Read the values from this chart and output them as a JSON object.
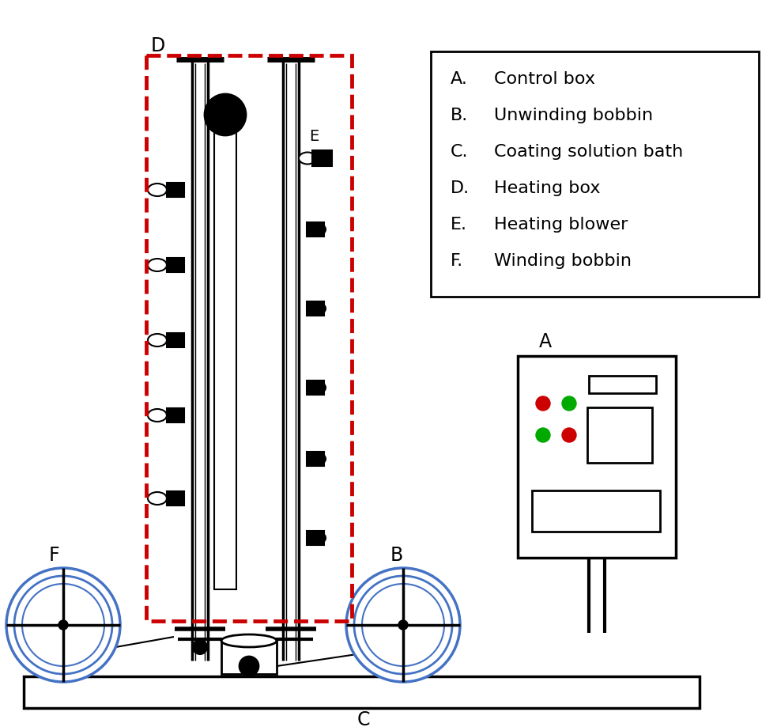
{
  "legend_items": [
    [
      "A.",
      "Control box"
    ],
    [
      "B.",
      "Unwinding bobbin"
    ],
    [
      "C.",
      "Coating solution bath"
    ],
    [
      "D.",
      "Heating box"
    ],
    [
      "E.",
      "Heating blower"
    ],
    [
      "F.",
      "Winding bobbin"
    ]
  ],
  "bg_color": "#ffffff",
  "line_color": "#000000",
  "red_dash_color": "#cc0000",
  "blue_color": "#4472c4",
  "dot_red": "#cc0000",
  "dot_green": "#00aa00"
}
